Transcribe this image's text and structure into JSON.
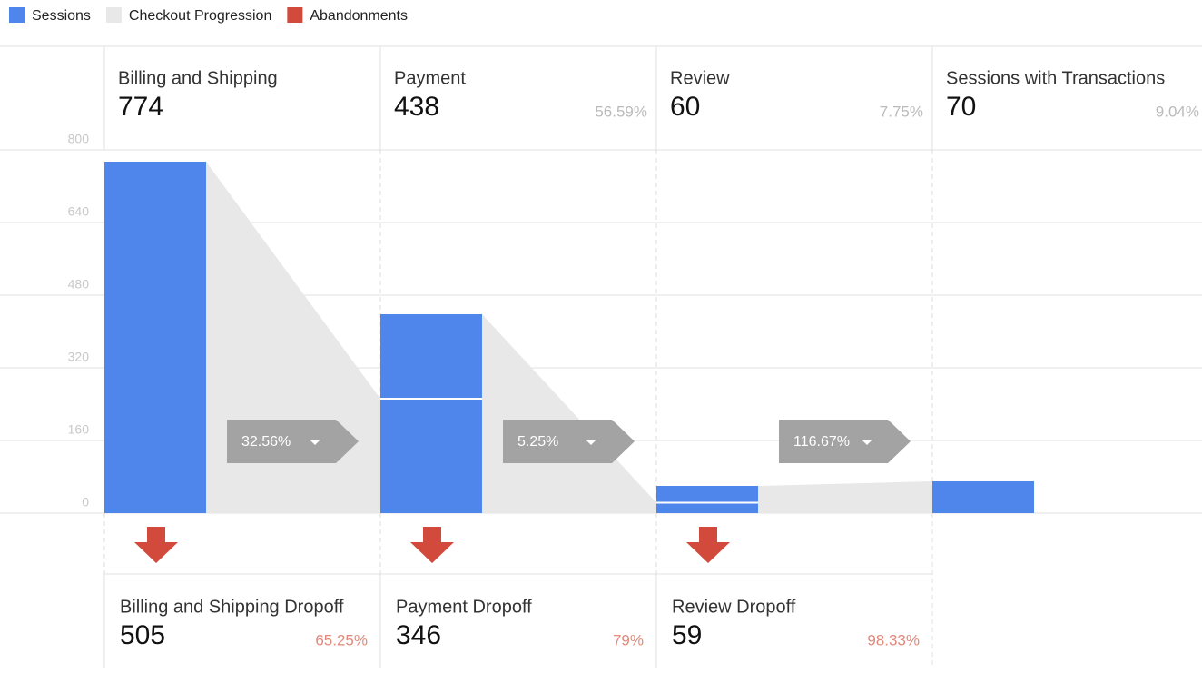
{
  "chart_data": {
    "type": "funnel",
    "legend": [
      {
        "name": "Sessions",
        "color": "#4f86ec"
      },
      {
        "name": "Checkout Progression",
        "color": "#e8e8e8"
      },
      {
        "name": "Abandonments",
        "color": "#d24a3c"
      }
    ],
    "ylim": [
      0,
      800
    ],
    "yticks": [
      0,
      160,
      320,
      480,
      640,
      800
    ],
    "stages": [
      {
        "name": "Billing and Shipping",
        "value": 774,
        "segments": [
          774
        ]
      },
      {
        "name": "Payment",
        "value": 438,
        "percent": 56.59,
        "percent_label": "56.59%",
        "segments": [
          252,
          186
        ]
      },
      {
        "name": "Review",
        "value": 60,
        "percent": 7.75,
        "percent_label": "7.75%",
        "segments": [
          23,
          37
        ]
      },
      {
        "name": "Sessions with Transactions",
        "value": 70,
        "percent": 9.04,
        "percent_label": "9.04%",
        "segments": [
          70
        ]
      }
    ],
    "progression": [
      {
        "value": 32.56,
        "label": "32.56%"
      },
      {
        "value": 5.25,
        "label": "5.25%"
      },
      {
        "value": 116.67,
        "label": "116.67%"
      }
    ],
    "dropoffs": [
      {
        "name": "Billing and Shipping Dropoff",
        "value": 505,
        "percent": 65.25,
        "percent_label": "65.25%"
      },
      {
        "name": "Payment Dropoff",
        "value": 346,
        "percent": 79,
        "percent_label": "79%"
      },
      {
        "name": "Review Dropoff",
        "value": 59,
        "percent": 98.33,
        "percent_label": "98.33%"
      }
    ]
  }
}
